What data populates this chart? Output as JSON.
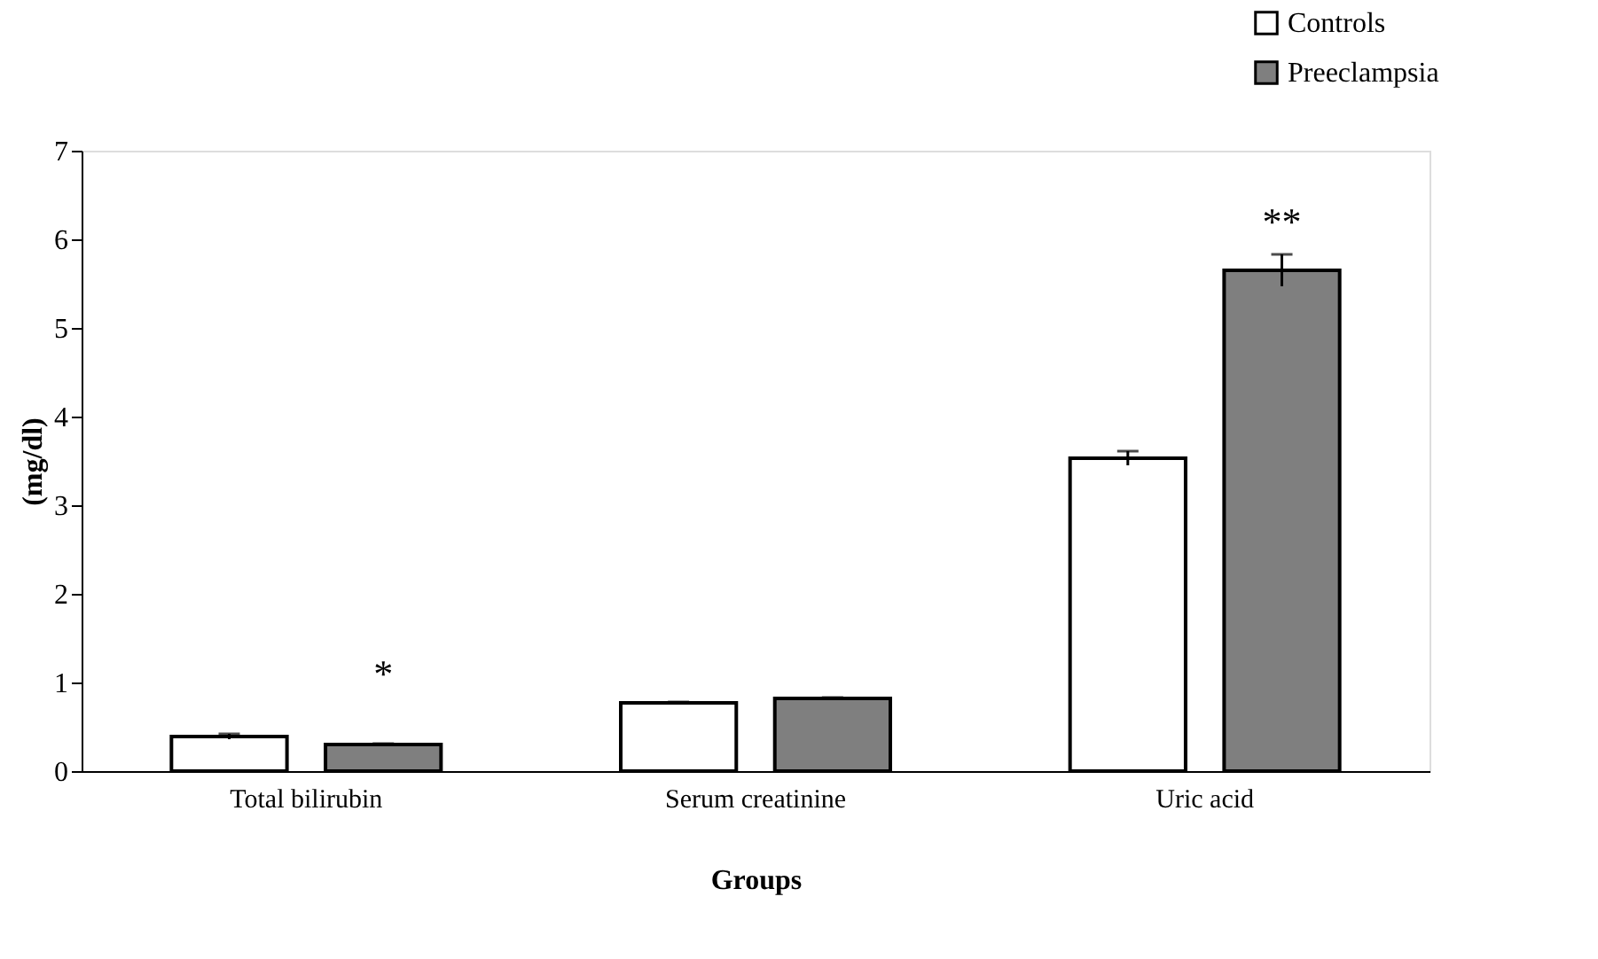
{
  "chart_data": {
    "type": "bar",
    "xlabel": "Groups",
    "ylabel": "(mg/dl)",
    "categories": [
      "Total bilirubin",
      "Serum creatinine",
      "Uric acid"
    ],
    "series": [
      {
        "name": "Controls",
        "color": "#ffffff",
        "values": [
          0.39,
          0.77,
          3.53
        ],
        "errors": [
          0.03,
          0.01,
          0.08
        ]
      },
      {
        "name": "Preeclampsia",
        "color": "#7f7f7f",
        "values": [
          0.3,
          0.82,
          5.65
        ],
        "errors": [
          0.01,
          0.01,
          0.18
        ]
      }
    ],
    "ylim": [
      0,
      7
    ],
    "yticks": [
      {
        "value": 0,
        "label": "0"
      },
      {
        "value": 1,
        "label": "1"
      },
      {
        "value": 2,
        "label": "2"
      },
      {
        "value": 3,
        "label": "3"
      },
      {
        "value": 4,
        "label": "4"
      },
      {
        "value": 5,
        "label": "5"
      },
      {
        "value": 6,
        "label": "6"
      },
      {
        "value": 7,
        "label": "7"
      }
    ],
    "grid": false,
    "legend": "top right",
    "annotations": [
      "*",
      "**"
    ]
  }
}
